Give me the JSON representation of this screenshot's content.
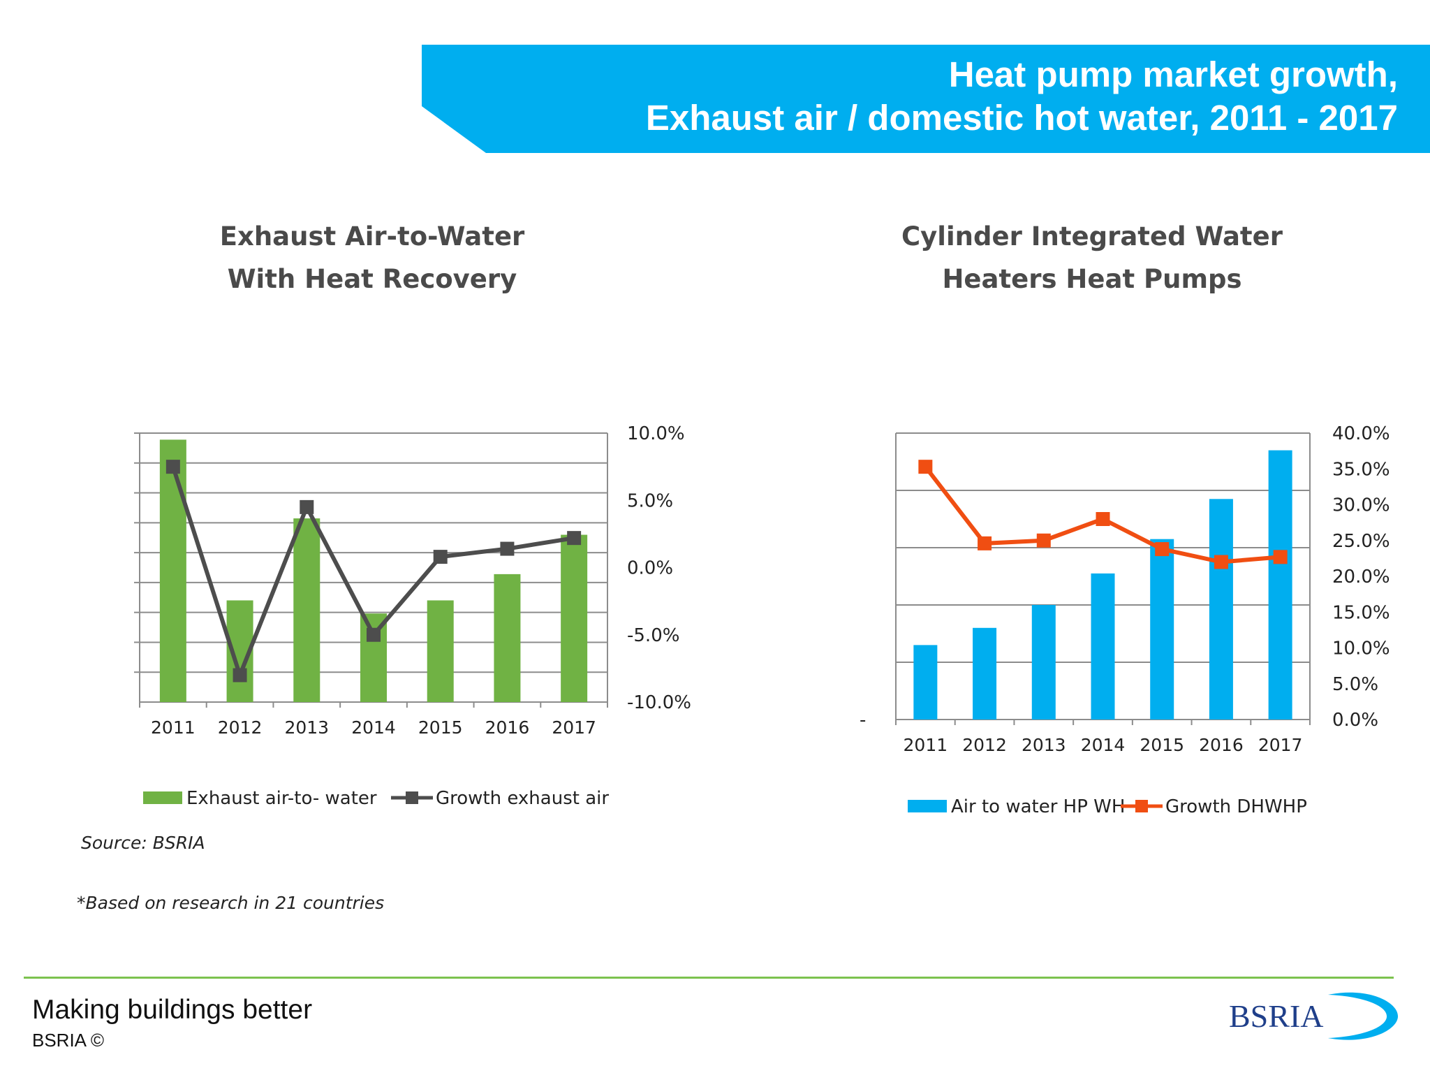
{
  "header": {
    "title_line1": "Heat pump market growth,",
    "title_line2": "Exhaust air / domestic hot water, 2011 - 2017",
    "banner_color": "#00aeef"
  },
  "left": {
    "title_line1": "Exhaust Air-to-Water",
    "title_line2": "With Heat Recovery"
  },
  "right": {
    "title_line1": "Cylinder Integrated Water",
    "title_line2": "Heaters Heat Pumps"
  },
  "source": "Source: BSRIA",
  "footnote": "*Based on research in 21 countries",
  "footer": {
    "tagline": "Making buildings better",
    "copyright": "BSRIA ©",
    "logo_text": "BSRIA",
    "rule_color": "#7cc24f"
  },
  "chart_data": [
    {
      "type": "bar",
      "categories": [
        "2011",
        "2012",
        "2013",
        "2014",
        "2015",
        "2016",
        "2017"
      ],
      "series": [
        {
          "name": "Exhaust air-to- water",
          "type": "bar",
          "color": "#70b244",
          "axis": "left-unlabeled",
          "values": [
            8,
            3.1,
            5.6,
            2.7,
            3.1,
            3.9,
            5.1
          ]
        },
        {
          "name": "Growth exhaust air",
          "type": "line",
          "color": "#4d4d4d",
          "axis": "right",
          "values": [
            7.5,
            -8.0,
            4.5,
            -5.0,
            0.8,
            1.4,
            2.2
          ]
        }
      ],
      "left_axis": {
        "ylim": [
          0,
          8.2
        ],
        "gridlines": 9,
        "labels": "none"
      },
      "right_axis": {
        "ylim": [
          -10,
          10
        ],
        "ticks": [
          "10.0%",
          "5.0%",
          "0.0%",
          "-5.0%",
          "-10.0%"
        ]
      },
      "grid": true,
      "legend": "bottom"
    },
    {
      "type": "bar",
      "categories": [
        "2011",
        "2012",
        "2013",
        "2014",
        "2015",
        "2016",
        "2017"
      ],
      "series": [
        {
          "name": "Air to water HP WH",
          "type": "bar",
          "color": "#00aeef",
          "axis": "left-unlabeled",
          "values": [
            1.3,
            1.6,
            2.0,
            2.55,
            3.15,
            3.85,
            4.7
          ]
        },
        {
          "name": "Growth DHWHP",
          "type": "line",
          "color": "#f04e12",
          "axis": "right",
          "values": [
            35.3,
            24.6,
            25.0,
            28.0,
            23.8,
            22.0,
            22.7
          ]
        }
      ],
      "left_axis": {
        "ylim": [
          0,
          5.0
        ],
        "ticks": [
          "-"
        ],
        "labels": "none"
      },
      "right_axis": {
        "ylim": [
          0,
          40
        ],
        "ticks": [
          "40.0%",
          "35.0%",
          "30.0%",
          "25.0%",
          "20.0%",
          "15.0%",
          "10.0%",
          "5.0%",
          "0.0%"
        ]
      },
      "grid": true,
      "legend": "bottom"
    }
  ]
}
